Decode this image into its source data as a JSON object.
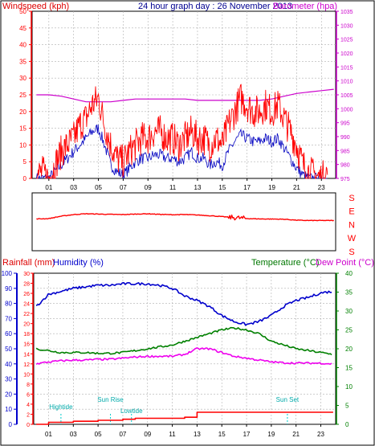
{
  "colors": {
    "wind": "#ff0000",
    "gust": "#0000c0",
    "baro": "#cc00cc",
    "temp": "#008000",
    "dew": "#ee00ee",
    "humidity": "#0000cc",
    "tide": "#00cccc",
    "frame": "#000000",
    "grid": "#b0b0b0"
  },
  "panel1": {
    "left_title": "Windspeed (kph)",
    "center_title": "24 hour graph day : 26 November 2013",
    "right_title": "Barometer (hpa)"
  },
  "panel2": {
    "compass_labels": [
      "S",
      "E",
      "N",
      "W",
      "S"
    ]
  },
  "panel3": {
    "rain_title": "Rainfall (mm)",
    "hum_title": "Humidity (%)",
    "temp_title": "Temperature (°C)",
    "dew_title": "Dew Point (°C)",
    "annotations": [
      {
        "label": "Hightide",
        "hour": 2.0
      },
      {
        "label": "Sun Rise",
        "hour": 6.0
      },
      {
        "label": "Lowtide",
        "hour": 7.7
      },
      {
        "label": "Sun Set",
        "hour": 20.3
      }
    ]
  },
  "chart_data": [
    {
      "type": "line",
      "ylabel_left": "Windspeed (kph)",
      "ylabel_right": "Barometer (hpa)",
      "x_tick_labels": [
        "01",
        "03",
        "05",
        "07",
        "09",
        "11",
        "13",
        "15",
        "17",
        "19",
        "21",
        "23"
      ],
      "ylim_left": [
        0,
        50
      ],
      "y_ticks_left": [
        0,
        5,
        10,
        15,
        20,
        25,
        30,
        35,
        40,
        45,
        50
      ],
      "ylim_right": [
        975,
        1035
      ],
      "y_ticks_right": [
        975,
        980,
        985,
        990,
        995,
        1000,
        1005,
        1010,
        1015,
        1020,
        1025,
        1030,
        1035
      ],
      "series": [
        {
          "name": "Windspeed (kph)",
          "axis": "left",
          "x": [
            0,
            0.5,
            1,
            1.5,
            2,
            2.5,
            3,
            3.5,
            4,
            4.5,
            5,
            5.5,
            6,
            6.5,
            7,
            7.5,
            8,
            8.5,
            9,
            9.5,
            10,
            10.5,
            11,
            11.5,
            12,
            12.5,
            13,
            13.5,
            14,
            14.5,
            15,
            15.5,
            16,
            16.5,
            17,
            17.5,
            18,
            18.5,
            19,
            19.5,
            20,
            20.5,
            21,
            21.5,
            22,
            22.5,
            23,
            23.5
          ],
          "y": [
            1,
            2,
            0,
            4,
            8,
            10,
            12,
            16,
            18,
            22,
            24,
            16,
            10,
            6,
            5,
            8,
            10,
            12,
            12,
            14,
            14,
            12,
            12,
            10,
            12,
            14,
            12,
            12,
            10,
            12,
            10,
            16,
            20,
            24,
            22,
            20,
            20,
            22,
            20,
            22,
            18,
            14,
            10,
            4,
            2,
            1,
            0,
            2
          ]
        },
        {
          "name": "Gust",
          "axis": "left",
          "x": [
            0,
            0.5,
            1,
            1.5,
            2,
            2.5,
            3,
            3.5,
            4,
            4.5,
            5,
            5.5,
            6,
            6.5,
            7,
            7.5,
            8,
            8.5,
            9,
            9.5,
            10,
            10.5,
            11,
            11.5,
            12,
            12.5,
            13,
            13.5,
            14,
            14.5,
            15,
            15.5,
            16,
            16.5,
            17,
            17.5,
            18,
            18.5,
            19,
            19.5,
            20,
            20.5,
            21,
            21.5,
            22,
            22.5,
            23
          ],
          "y": [
            0,
            0,
            0,
            2,
            4,
            6,
            8,
            10,
            12,
            14,
            15,
            10,
            4,
            2,
            1,
            3,
            5,
            6,
            6,
            7,
            7,
            6,
            6,
            5,
            6,
            8,
            6,
            6,
            4,
            5,
            4,
            8,
            11,
            13,
            12,
            11,
            11,
            12,
            11,
            12,
            9,
            6,
            3,
            1,
            0,
            0,
            0
          ]
        },
        {
          "name": "Barometer (hpa)",
          "axis": "right",
          "x": [
            0,
            1,
            2,
            3,
            4,
            5,
            6,
            7,
            8,
            9,
            10,
            11,
            12,
            13,
            14,
            15,
            16,
            17,
            18,
            19,
            20,
            21,
            22,
            23,
            24
          ],
          "y": [
            1005,
            1005,
            1004.5,
            1003.5,
            1002.5,
            1002.5,
            1002.5,
            1003,
            1003.5,
            1003.5,
            1003.5,
            1003.5,
            1003.5,
            1003,
            1003,
            1003,
            1003,
            1003,
            1003,
            1003.5,
            1004.5,
            1005.5,
            1006,
            1006.5,
            1007
          ]
        }
      ]
    },
    {
      "type": "line",
      "ylabel": "Wind direction",
      "y_tick_labels": [
        "S",
        "E",
        "N",
        "W",
        "S"
      ],
      "ylim": [
        0,
        360
      ],
      "series": [
        {
          "name": "Wind direction",
          "x": [
            0,
            1,
            2,
            3,
            4,
            5,
            6,
            7,
            8,
            9,
            10,
            11,
            12,
            13,
            14,
            15,
            16,
            17,
            18,
            19,
            20,
            21,
            22,
            23,
            24
          ],
          "y": [
            198,
            200,
            215,
            225,
            230,
            228,
            226,
            225,
            228,
            230,
            226,
            224,
            225,
            222,
            218,
            212,
            206,
            200,
            198,
            197,
            196,
            190,
            188,
            188,
            188
          ]
        }
      ]
    },
    {
      "type": "line",
      "ylabel_left_outer": "Humidity (%)",
      "ylabel_left_inner": "Rainfall (mm)",
      "ylabel_right": "Temperature (°C)",
      "x_tick_labels": [
        "01",
        "03",
        "05",
        "07",
        "09",
        "11",
        "13",
        "15",
        "17",
        "19",
        "21",
        "23"
      ],
      "ylim_humidity": [
        0,
        100
      ],
      "y_ticks_humidity": [
        0,
        10,
        20,
        30,
        40,
        50,
        60,
        70,
        80,
        90,
        100
      ],
      "ylim_rain": [
        0,
        30
      ],
      "y_ticks_rain": [
        0,
        2,
        4,
        6,
        8,
        10,
        12,
        14,
        16,
        18,
        20,
        22,
        24,
        26,
        28,
        30
      ],
      "ylim_temp": [
        0,
        40
      ],
      "y_ticks_temp": [
        0,
        5,
        10,
        15,
        20,
        25,
        30,
        35,
        40
      ],
      "series": [
        {
          "name": "Humidity (%)",
          "axis": "humidity",
          "x": [
            0,
            1,
            2,
            3,
            4,
            5,
            6,
            7,
            8,
            9,
            10,
            11,
            12,
            13,
            14,
            15,
            16,
            17,
            18,
            19,
            20,
            21,
            22,
            23,
            24
          ],
          "y": [
            78,
            86,
            88,
            90,
            91,
            92,
            92,
            93,
            93,
            93,
            92,
            90,
            85,
            82,
            78,
            72,
            68,
            66,
            68,
            72,
            78,
            82,
            84,
            87,
            88
          ]
        },
        {
          "name": "Temperature (°C)",
          "axis": "temp",
          "x": [
            0,
            1,
            2,
            3,
            4,
            5,
            6,
            7,
            8,
            9,
            10,
            11,
            12,
            13,
            14,
            15,
            16,
            17,
            18,
            19,
            20,
            21,
            22,
            23,
            24
          ],
          "y": [
            20,
            19.5,
            19,
            19,
            19,
            18.8,
            18.8,
            19,
            19.5,
            20,
            20.5,
            21,
            22,
            23,
            24,
            25,
            25.5,
            25,
            24,
            22,
            21,
            20,
            19.5,
            19,
            18.5
          ]
        },
        {
          "name": "Dew Point (°C)",
          "axis": "temp",
          "x": [
            0,
            1,
            2,
            3,
            4,
            5,
            6,
            7,
            8,
            9,
            10,
            11,
            12,
            13,
            14,
            15,
            16,
            17,
            18,
            19,
            20,
            21,
            22,
            23,
            24
          ],
          "y": [
            16,
            16.5,
            16.8,
            17,
            17,
            17.2,
            17.2,
            17.5,
            17.8,
            18,
            18,
            18,
            18.5,
            20,
            20,
            19,
            18,
            17.5,
            17,
            16.5,
            16.3,
            16.2,
            16.2,
            16.2,
            16
          ]
        },
        {
          "name": "Rainfall (mm)",
          "axis": "rain",
          "x": [
            0,
            1,
            2,
            3,
            4,
            5,
            6,
            7,
            8,
            9,
            10,
            11,
            12,
            13,
            14,
            15,
            16,
            17,
            18,
            19,
            20,
            21,
            22,
            23,
            24
          ],
          "y": [
            0,
            0.4,
            0.4,
            0.6,
            0.6,
            0.8,
            0.8,
            1.0,
            1.2,
            1.2,
            1.2,
            1.2,
            1.4,
            2.4,
            2.4,
            2.4,
            2.4,
            2.4,
            2.4,
            2.4,
            2.4,
            2.4,
            2.4,
            2.4,
            2.4
          ]
        }
      ]
    }
  ]
}
